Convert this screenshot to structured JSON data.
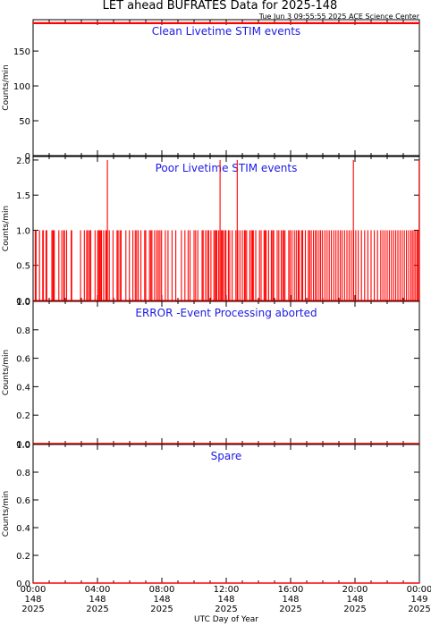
{
  "figure": {
    "title": "LET ahead BUFRATES Data for 2025-148",
    "timestamp": "Tue Jun  3 09:55:55 2025 ACE Science Center",
    "xlabel": "UTC Day of Year"
  },
  "colors": {
    "series": "#ff0000",
    "panel_title": "#1a1ae6",
    "axes": "#000000"
  },
  "chart_data": [
    {
      "type": "line",
      "title": "Clean Livetime STIM events",
      "ylabel": "Counts/min",
      "ylim": [
        0,
        195
      ],
      "yticks": [
        0,
        50,
        100,
        150
      ],
      "xlim": [
        0,
        1440
      ],
      "series": [
        {
          "x": [
            0,
            1440
          ],
          "y": [
            190,
            190
          ]
        }
      ]
    },
    {
      "type": "line",
      "title": "Poor Livetime STIM events",
      "ylabel": "Counts/min",
      "ylim": [
        0,
        2.05
      ],
      "yticks": [
        "0.0",
        "0.5",
        "1.0",
        "1.5",
        "2.0"
      ],
      "xlim": [
        0,
        1440
      ],
      "series": [
        {
          "baseline": 0,
          "spikes": [
            [
              8,
              1
            ],
            [
              11,
              1
            ],
            [
              24,
              1
            ],
            [
              36,
              1
            ],
            [
              38,
              1
            ],
            [
              48,
              1
            ],
            [
              51,
              1
            ],
            [
              70,
              1
            ],
            [
              74,
              1
            ],
            [
              76,
              1
            ],
            [
              79,
              1
            ],
            [
              96,
              1
            ],
            [
              107,
              1
            ],
            [
              114,
              1
            ],
            [
              117,
              1
            ],
            [
              125,
              1
            ],
            [
              142,
              1
            ],
            [
              144,
              1
            ],
            [
              177,
              1
            ],
            [
              191,
              1
            ],
            [
              200,
              1
            ],
            [
              202,
              1
            ],
            [
              208,
              1
            ],
            [
              213,
              1
            ],
            [
              215,
              1
            ],
            [
              231,
              1
            ],
            [
              241,
              1
            ],
            [
              244,
              1
            ],
            [
              248,
              1
            ],
            [
              251,
              1
            ],
            [
              255,
              1
            ],
            [
              263,
              1
            ],
            [
              271,
              1
            ],
            [
              274,
              1
            ],
            [
              284,
              1
            ],
            [
              298,
              1
            ],
            [
              313,
              1
            ],
            [
              317,
              1
            ],
            [
              324,
              1
            ],
            [
              328,
              1
            ],
            [
              346,
              1
            ],
            [
              359,
              1
            ],
            [
              372,
              1
            ],
            [
              381,
              1
            ],
            [
              386,
              1
            ],
            [
              392,
              1
            ],
            [
              402,
              1
            ],
            [
              416,
              1
            ],
            [
              420,
              1
            ],
            [
              434,
              1
            ],
            [
              439,
              1
            ],
            [
              443,
              1
            ],
            [
              453,
              1
            ],
            [
              461,
              1
            ],
            [
              467,
              1
            ],
            [
              473,
              1
            ],
            [
              479,
              1
            ],
            [
              493,
              1
            ],
            [
              503,
              1
            ],
            [
              518,
              1
            ],
            [
              532,
              1
            ],
            [
              553,
              1
            ],
            [
              566,
              1
            ],
            [
              578,
              1
            ],
            [
              585,
              1
            ],
            [
              600,
              1
            ],
            [
              606,
              1
            ],
            [
              614,
              1
            ],
            [
              630,
              1
            ],
            [
              634,
              1
            ],
            [
              643,
              1
            ],
            [
              650,
              1
            ],
            [
              655,
              1
            ],
            [
              663,
              1
            ],
            [
              674,
              1
            ],
            [
              679,
              1
            ],
            [
              681,
              1
            ],
            [
              685,
              1
            ],
            [
              692,
              1
            ],
            [
              697,
              1
            ],
            [
              702,
              1
            ],
            [
              706,
              1
            ],
            [
              709,
              1
            ],
            [
              716,
              1
            ],
            [
              719,
              1
            ],
            [
              728,
              1
            ],
            [
              733,
              1
            ],
            [
              742,
              1
            ],
            [
              756,
              1
            ],
            [
              763,
              1
            ],
            [
              771,
              1
            ],
            [
              780,
              1
            ],
            [
              788,
              1
            ],
            [
              791,
              1
            ],
            [
              796,
              1
            ],
            [
              808,
              1
            ],
            [
              814,
              1
            ],
            [
              818,
              1
            ],
            [
              821,
              1
            ],
            [
              830,
              1
            ],
            [
              844,
              1
            ],
            [
              850,
              1
            ],
            [
              861,
              1
            ],
            [
              865,
              1
            ],
            [
              869,
              1
            ],
            [
              878,
              1
            ],
            [
              888,
              1
            ],
            [
              893,
              1
            ],
            [
              897,
              1
            ],
            [
              910,
              1
            ],
            [
              916,
              1
            ],
            [
              925,
              1
            ],
            [
              931,
              1
            ],
            [
              934,
              1
            ],
            [
              939,
              1
            ],
            [
              953,
              1
            ],
            [
              958,
              1
            ],
            [
              965,
              1
            ],
            [
              974,
              1
            ],
            [
              981,
              1
            ],
            [
              988,
              1
            ],
            [
              992,
              1
            ],
            [
              1001,
              1
            ],
            [
              1005,
              1
            ],
            [
              1015,
              1
            ],
            [
              1026,
              1
            ],
            [
              1031,
              1
            ],
            [
              1037,
              1
            ],
            [
              1045,
              1
            ],
            [
              1052,
              1
            ],
            [
              1058,
              1
            ],
            [
              1066,
              1
            ],
            [
              1072,
              1
            ],
            [
              1079,
              1
            ],
            [
              1088,
              1
            ],
            [
              1096,
              1
            ],
            [
              1104,
              1
            ],
            [
              1112,
              1
            ],
            [
              1121,
              1
            ],
            [
              1129,
              1
            ],
            [
              1137,
              1
            ],
            [
              1145,
              1
            ],
            [
              1152,
              1
            ],
            [
              1161,
              1
            ],
            [
              1170,
              1
            ],
            [
              1178,
              1
            ],
            [
              1186,
              1
            ],
            [
              1195,
              1
            ],
            [
              1203,
              1
            ],
            [
              1212,
              1
            ],
            [
              1224,
              1
            ],
            [
              1236,
              1
            ],
            [
              1248,
              1
            ],
            [
              1260,
              1
            ],
            [
              1272,
              1
            ],
            [
              1284,
              1
            ],
            [
              1296,
              1
            ],
            [
              1304,
              1
            ],
            [
              1312,
              1
            ],
            [
              1320,
              1
            ],
            [
              1328,
              1
            ],
            [
              1336,
              1
            ],
            [
              1344,
              1
            ],
            [
              1352,
              1
            ],
            [
              1360,
              1
            ],
            [
              1368,
              1
            ],
            [
              1376,
              1
            ],
            [
              1384,
              1
            ],
            [
              1392,
              1
            ],
            [
              1400,
              1
            ],
            [
              1408,
              1
            ],
            [
              1414,
              1
            ],
            [
              1420,
              1
            ],
            [
              1426,
              1
            ],
            [
              1432,
              1
            ],
            [
              1436,
              1
            ],
            [
              277,
              2
            ],
            [
              697,
              2
            ],
            [
              761,
              2
            ],
            [
              1194,
              2
            ],
            [
              1439,
              2
            ]
          ]
        }
      ]
    },
    {
      "type": "line",
      "title": "ERROR -Event Processing aborted",
      "ylabel": "Counts/min",
      "ylim": [
        0,
        1
      ],
      "yticks": [
        "0.0",
        "0.2",
        "0.4",
        "0.6",
        "0.8",
        "1.0"
      ],
      "xlim": [
        0,
        1440
      ],
      "series": [
        {
          "x": [
            0,
            1440
          ],
          "y": [
            0,
            0
          ]
        }
      ]
    },
    {
      "type": "line",
      "title": "Spare",
      "ylabel": "Counts/min",
      "ylim": [
        0,
        1
      ],
      "yticks": [
        "0.0",
        "0.2",
        "0.4",
        "0.6",
        "0.8",
        "1.0"
      ],
      "xlim": [
        0,
        1440
      ],
      "series": [
        {
          "x": [
            0,
            1440
          ],
          "y": [
            0,
            0
          ]
        }
      ]
    }
  ],
  "xaxis": {
    "ticks": [
      {
        "minute": 0,
        "time": "00:00",
        "doy": "148",
        "year": "2025"
      },
      {
        "minute": 240,
        "time": "04:00",
        "doy": "148",
        "year": "2025"
      },
      {
        "minute": 480,
        "time": "08:00",
        "doy": "148",
        "year": "2025"
      },
      {
        "minute": 720,
        "time": "12:00",
        "doy": "148",
        "year": "2025"
      },
      {
        "minute": 960,
        "time": "16:00",
        "doy": "148",
        "year": "2025"
      },
      {
        "minute": 1200,
        "time": "20:00",
        "doy": "148",
        "year": "2025"
      },
      {
        "minute": 1440,
        "time": "00:00",
        "doy": "149",
        "year": "2025"
      }
    ]
  }
}
